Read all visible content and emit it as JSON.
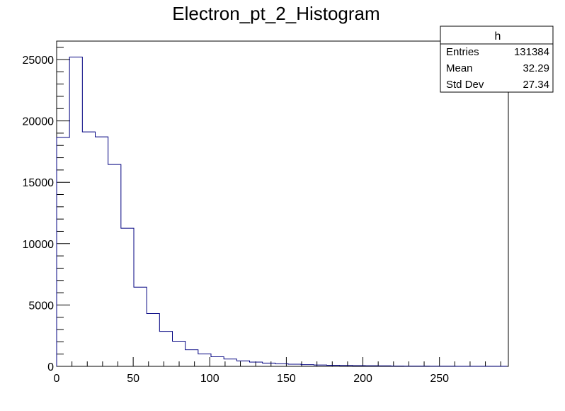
{
  "chart_data": {
    "type": "bar",
    "title": "Electron_pt_2_Histogram",
    "xlabel": "",
    "ylabel": "",
    "xlim": [
      0,
      295
    ],
    "ylim": [
      0,
      26500
    ],
    "bin_width": 8.4,
    "bin_edges_start": 0,
    "values": [
      18650,
      25200,
      19100,
      18700,
      16450,
      11250,
      6450,
      4300,
      2850,
      2050,
      1350,
      1020,
      780,
      600,
      450,
      350,
      270,
      220,
      170,
      140,
      110,
      90,
      75,
      60,
      50,
      40,
      30,
      25,
      20,
      15,
      12,
      10,
      8,
      6,
      5
    ],
    "x_ticks": [
      0,
      50,
      100,
      150,
      200,
      250
    ],
    "y_ticks": [
      0,
      5000,
      10000,
      15000,
      20000,
      25000
    ],
    "line_color": "#000080",
    "grid": false
  },
  "stats_box": {
    "title": "h",
    "rows": [
      {
        "label": "Entries",
        "value": "131384"
      },
      {
        "label": "Mean",
        "value": "32.29"
      },
      {
        "label": "Std Dev",
        "value": "27.34"
      }
    ]
  }
}
